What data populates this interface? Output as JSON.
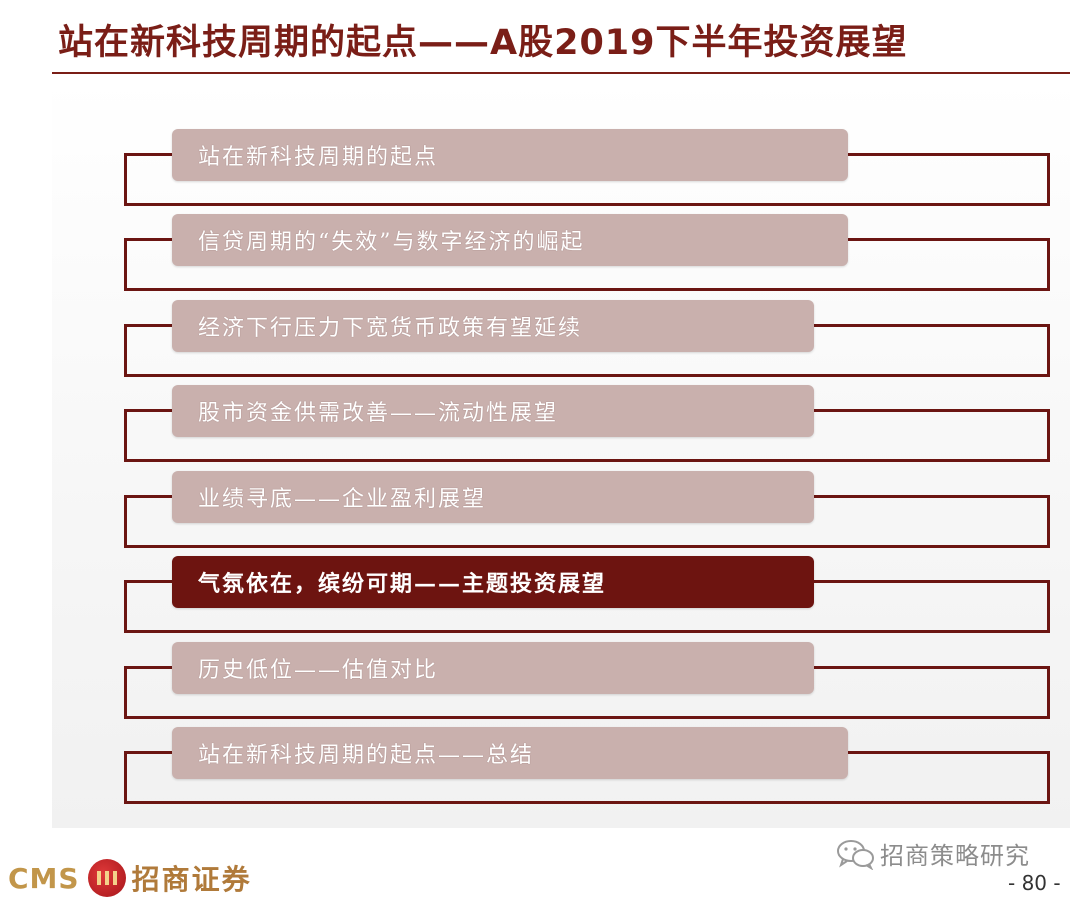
{
  "header": {
    "title": "站在新科技周期的起点——A股2019下半年投资展望"
  },
  "agenda": {
    "items": [
      {
        "label": "站在新科技周期的起点",
        "active": false
      },
      {
        "label": "信贷周期的“失效”与数字经济的崛起",
        "active": false
      },
      {
        "label": "经济下行压力下宽货币政策有望延续",
        "active": false
      },
      {
        "label": "股市资金供需改善——流动性展望",
        "active": false
      },
      {
        "label": "业绩寻底——企业盈利展望",
        "active": false
      },
      {
        "label": "气氛依在，缤纷可期——主题投资展望",
        "active": true
      },
      {
        "label": "历史低位——估值对比",
        "active": false
      },
      {
        "label": "站在新科技周期的起点——总结",
        "active": false
      }
    ]
  },
  "footer": {
    "brand_latin": "CMS",
    "brand_chinese": "招商证券",
    "wechat_account": "招商策略研究",
    "page_number": "- 80 -"
  },
  "colors": {
    "accent": "#6d1410",
    "pill_inactive": "#c9b0ad",
    "brand_gold": "#c2964a",
    "logo_red": "#c0201f"
  },
  "icons": {
    "brand": "cms-logo-icon",
    "wechat": "wechat-icon"
  }
}
